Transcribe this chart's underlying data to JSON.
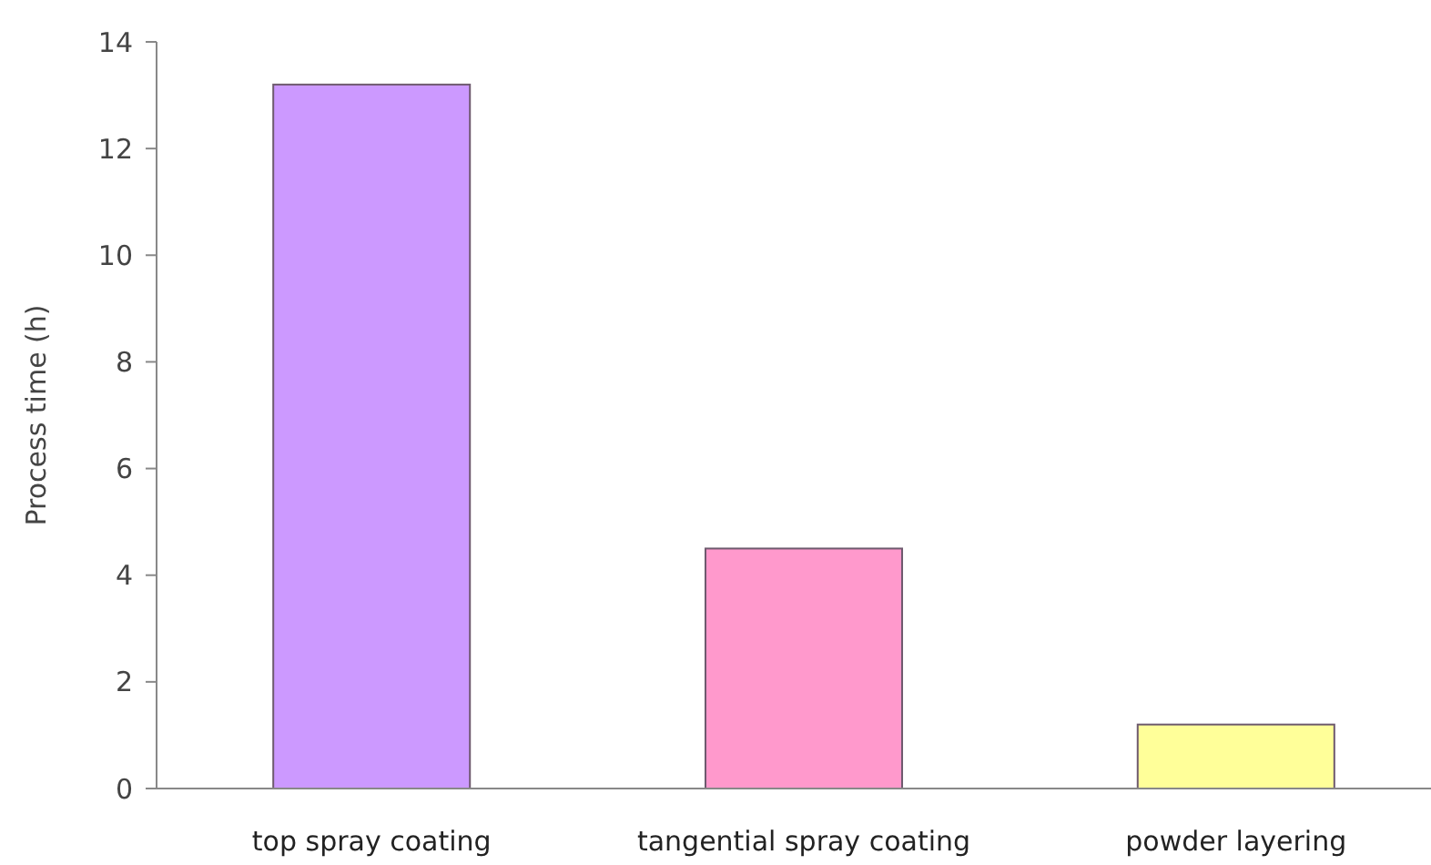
{
  "chart_data": {
    "type": "bar",
    "ylabel": "Process time (h)",
    "categories": [
      "top spray coating",
      "tangential spray coating",
      "powder layering"
    ],
    "values": [
      13.2,
      4.5,
      1.2
    ],
    "colors": [
      "#cc99ff",
      "#ff99cc",
      "#ffff99"
    ],
    "ylim": [
      0,
      14
    ],
    "yticks": [
      0,
      2,
      4,
      6,
      8,
      10,
      12,
      14
    ],
    "grid": false
  }
}
